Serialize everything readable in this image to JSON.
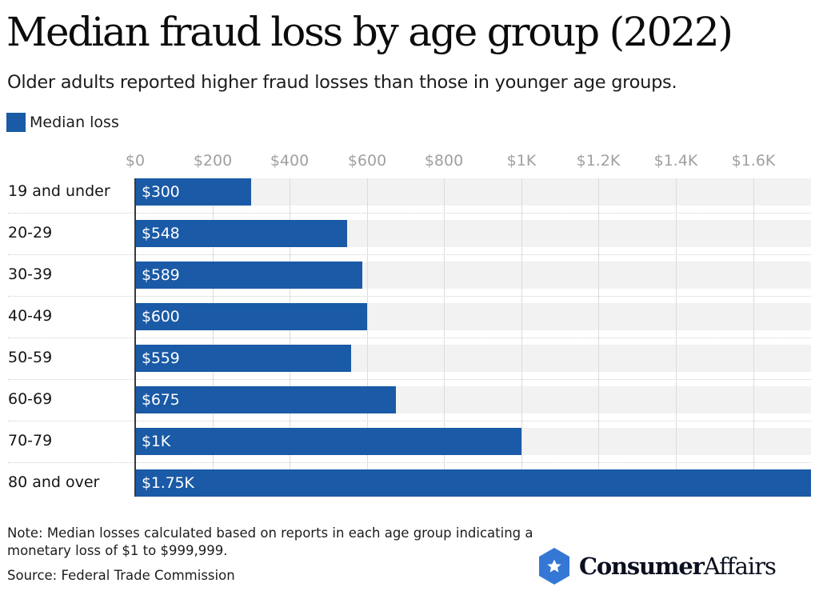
{
  "header": {
    "title": "Median fraud loss by age group (2022)",
    "subtitle": "Older adults reported higher fraud losses than those in younger age groups."
  },
  "legend": {
    "items": [
      {
        "label": "Median loss",
        "color": "#1a5aa6"
      }
    ]
  },
  "axis": {
    "ticks": [
      {
        "label": "$0",
        "value": 0
      },
      {
        "label": "$200",
        "value": 200
      },
      {
        "label": "$400",
        "value": 400
      },
      {
        "label": "$600",
        "value": 600
      },
      {
        "label": "$800",
        "value": 800
      },
      {
        "label": "$1K",
        "value": 1000
      },
      {
        "label": "$1.2K",
        "value": 1200
      },
      {
        "label": "$1.4K",
        "value": 1400
      },
      {
        "label": "$1.6K",
        "value": 1600
      }
    ]
  },
  "rows": [
    {
      "category": "19 and under",
      "value": 300,
      "label": "$300"
    },
    {
      "category": "20-29",
      "value": 548,
      "label": "$548"
    },
    {
      "category": "30-39",
      "value": 589,
      "label": "$589"
    },
    {
      "category": "40-49",
      "value": 600,
      "label": "$600"
    },
    {
      "category": "50-59",
      "value": 559,
      "label": "$559"
    },
    {
      "category": "60-69",
      "value": 675,
      "label": "$675"
    },
    {
      "category": "70-79",
      "value": 1000,
      "label": "$1K"
    },
    {
      "category": "80 and over",
      "value": 1750,
      "label": "$1.75K"
    }
  ],
  "footer": {
    "note": "Note: Median losses calculated based on reports in each age group indicating a monetary loss of $1 to $999,999.",
    "source": "Source: Federal Trade Commission"
  },
  "brand": {
    "name_bold": "Consumer",
    "name_light": "Affairs",
    "icon": "star-hexagon-icon",
    "color": "#3577d4"
  },
  "colors": {
    "bar": "#1a5aa6",
    "track": "#f2f2f2",
    "tick_text": "#a0a0a0"
  },
  "chart_data": {
    "type": "bar",
    "orientation": "horizontal",
    "title": "Median fraud loss by age group (2022)",
    "subtitle": "Older adults reported higher fraud losses than those in younger age groups.",
    "categories": [
      "19 and under",
      "20-29",
      "30-39",
      "40-49",
      "50-59",
      "60-69",
      "70-79",
      "80 and over"
    ],
    "series": [
      {
        "name": "Median loss",
        "values": [
          300,
          548,
          589,
          600,
          559,
          675,
          1000,
          1750
        ],
        "color": "#1a5aa6"
      }
    ],
    "data_labels": [
      "$300",
      "$548",
      "$589",
      "$600",
      "$559",
      "$675",
      "$1K",
      "$1.75K"
    ],
    "xlabel": "",
    "ylabel": "",
    "xlim": [
      0,
      1750
    ],
    "x_ticks": [
      "$0",
      "$200",
      "$400",
      "$600",
      "$800",
      "$1K",
      "$1.2K",
      "$1.4K",
      "$1.6K"
    ],
    "grid": true,
    "legend_position": "top-left",
    "note": "Note: Median losses calculated based on reports in each age group indicating a monetary loss of $1 to $999,999.",
    "source": "Source: Federal Trade Commission"
  }
}
